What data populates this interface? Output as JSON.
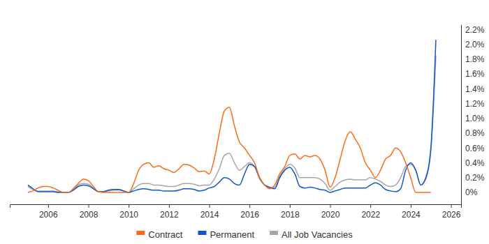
{
  "chart_data": {
    "type": "line",
    "x": [
      2005,
      2005.25,
      2005.5,
      2005.75,
      2006,
      2006.25,
      2006.5,
      2006.75,
      2007,
      2007.25,
      2007.5,
      2007.75,
      2008,
      2008.25,
      2008.5,
      2008.75,
      2009,
      2009.25,
      2009.5,
      2009.75,
      2010,
      2010.25,
      2010.5,
      2010.75,
      2011,
      2011.25,
      2011.5,
      2011.75,
      2012,
      2012.25,
      2012.5,
      2012.75,
      2013,
      2013.25,
      2013.5,
      2013.75,
      2014,
      2014.25,
      2014.5,
      2014.75,
      2015,
      2015.25,
      2015.5,
      2015.75,
      2016,
      2016.25,
      2016.5,
      2016.75,
      2017,
      2017.25,
      2017.5,
      2017.75,
      2018,
      2018.25,
      2018.5,
      2018.75,
      2019,
      2019.25,
      2019.5,
      2019.75,
      2020,
      2020.25,
      2020.5,
      2020.75,
      2021,
      2021.25,
      2021.5,
      2021.75,
      2022,
      2022.25,
      2022.5,
      2022.75,
      2023,
      2023.25,
      2023.5,
      2023.75,
      2024,
      2024.25,
      2024.5,
      2024.75,
      2025,
      2025.25
    ],
    "series": [
      {
        "name": "Contract",
        "color": "#ff6a13",
        "values": [
          0,
          0.02,
          0.06,
          0.08,
          0.08,
          0.06,
          0.03,
          0,
          0,
          0.05,
          0.12,
          0.18,
          0.16,
          0.08,
          0.01,
          0,
          0,
          0,
          0,
          0,
          0,
          0.12,
          0.3,
          0.38,
          0.4,
          0.34,
          0.36,
          0.32,
          0.3,
          0.27,
          0.32,
          0.38,
          0.37,
          0.33,
          0.28,
          0.29,
          0.25,
          0.45,
          0.8,
          1.1,
          1.15,
          0.9,
          0.68,
          0.6,
          0.5,
          0.4,
          0.2,
          0.1,
          0.05,
          0.1,
          0.25,
          0.35,
          0.5,
          0.52,
          0.45,
          0.5,
          0.48,
          0.5,
          0.45,
          0.3,
          0.07,
          0.2,
          0.45,
          0.7,
          0.82,
          0.72,
          0.6,
          0.4,
          0.3,
          0.2,
          0.3,
          0.45,
          0.5,
          0.6,
          0.55,
          0.4,
          0.2,
          0,
          0,
          0,
          0,
          null
        ]
      },
      {
        "name": "Permanent",
        "color": "#1155cc",
        "values": [
          0.1,
          0.05,
          0.01,
          0.01,
          0.01,
          0.01,
          0,
          0,
          0,
          0.03,
          0.08,
          0.1,
          0.09,
          0.05,
          0.01,
          0.01,
          0.03,
          0.04,
          0.04,
          0.02,
          0,
          0.02,
          0.04,
          0.05,
          0.04,
          0.03,
          0.03,
          0.02,
          0.02,
          0.02,
          0.03,
          0.05,
          0.05,
          0.04,
          0.02,
          0.03,
          0.06,
          0.08,
          0.14,
          0.2,
          0.18,
          0.12,
          0.1,
          0.25,
          0.38,
          0.35,
          0.2,
          0.1,
          0.07,
          0.05,
          0.2,
          0.3,
          0.34,
          0.25,
          0.08,
          0.06,
          0.07,
          0.06,
          0.04,
          0.03,
          0,
          0.02,
          0.04,
          0.06,
          0.06,
          0.06,
          0.06,
          0.06,
          0.1,
          0.13,
          0.1,
          0.04,
          0.02,
          0.01,
          0.05,
          0.3,
          0.4,
          0.3,
          0.1,
          0.2,
          0.6,
          2.06
        ]
      },
      {
        "name": "All Job Vacancies",
        "color": "#a6a6a6",
        "values": [
          0.08,
          0.04,
          0.02,
          0.02,
          0.02,
          0.02,
          0.01,
          0,
          0,
          0.04,
          0.1,
          0.12,
          0.11,
          0.06,
          0.01,
          0.01,
          0.02,
          0.03,
          0.03,
          0.02,
          0,
          0.05,
          0.1,
          0.12,
          0.12,
          0.1,
          0.1,
          0.09,
          0.08,
          0.08,
          0.1,
          0.12,
          0.12,
          0.11,
          0.09,
          0.1,
          0.1,
          0.18,
          0.32,
          0.5,
          0.53,
          0.4,
          0.3,
          0.35,
          0.4,
          0.35,
          0.18,
          0.1,
          0.06,
          0.07,
          0.22,
          0.32,
          0.38,
          0.33,
          0.2,
          0.2,
          0.2,
          0.2,
          0.18,
          0.12,
          0.03,
          0.08,
          0.14,
          0.17,
          0.18,
          0.17,
          0.17,
          0.17,
          0.2,
          0.18,
          0.15,
          0.1,
          0.08,
          0.1,
          0.2,
          0.35,
          0.38,
          0.3,
          0.1,
          0.18,
          0.55,
          1.85
        ]
      }
    ],
    "xlim": [
      2004.1,
      2026.5
    ],
    "xticks": [
      2006,
      2008,
      2010,
      2012,
      2014,
      2016,
      2018,
      2020,
      2022,
      2024,
      2026
    ],
    "ylim": [
      -0.16,
      2.27
    ],
    "yticks": [
      {
        "value": 0,
        "label": "0%"
      },
      {
        "value": 0.2,
        "label": "0.2%"
      },
      {
        "value": 0.4,
        "label": "0.4%"
      },
      {
        "value": 0.6,
        "label": "0.6%"
      },
      {
        "value": 0.8,
        "label": "0.8%"
      },
      {
        "value": 1.0,
        "label": "1.0%"
      },
      {
        "value": 1.2,
        "label": "1.2%"
      },
      {
        "value": 1.4,
        "label": "1.4%"
      },
      {
        "value": 1.6,
        "label": "1.6%"
      },
      {
        "value": 1.8,
        "label": "1.8%"
      },
      {
        "value": 2.0,
        "label": "2.0%"
      },
      {
        "value": 2.2,
        "label": "2.2%"
      }
    ],
    "grid": false,
    "legend": "bottom"
  }
}
